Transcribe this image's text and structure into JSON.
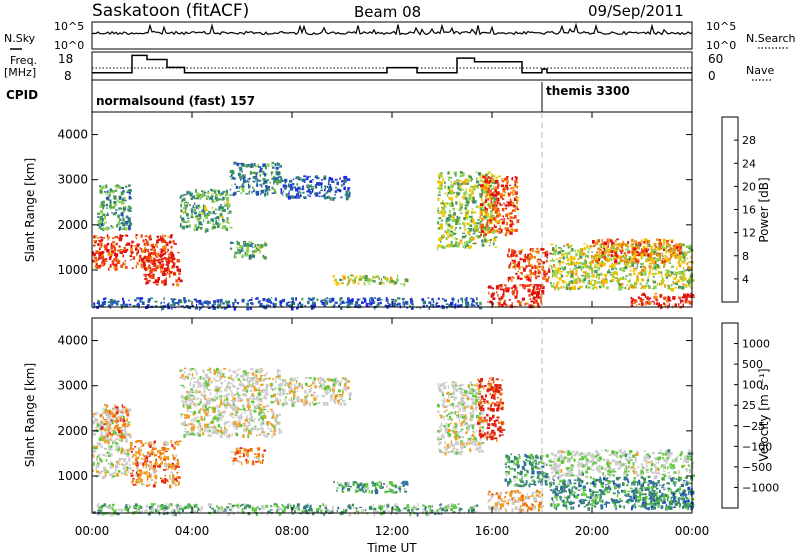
{
  "header": {
    "station": "Saskatoon (fitACF)",
    "beam": "Beam 08",
    "date": "09/Sep/2011"
  },
  "top_panels": {
    "nsky_label": "N.Sky",
    "nsky_ticks": [
      "10^5",
      "10^0"
    ],
    "nsearch_label": "N.Search",
    "nsearch_ticks": [
      "10^5",
      "10^0"
    ],
    "freq_label_1": "Freq.",
    "freq_label_2": "[MHz]",
    "freq_ticks": [
      "18",
      "8"
    ],
    "nave_label": "Nave",
    "nave_ticks": [
      "60",
      "0"
    ],
    "cpid_label": "CPID",
    "cpid_segments": [
      {
        "label": "normalsound (fast) 157",
        "start_hour": 0
      },
      {
        "label": "themis 3300",
        "start_hour": 18
      }
    ],
    "freq_steps": [
      {
        "t": 0,
        "v": 10.6
      },
      {
        "t": 1.6,
        "v": 16.8
      },
      {
        "t": 2.2,
        "v": 15.3
      },
      {
        "t": 3.0,
        "v": 12.5
      },
      {
        "t": 3.7,
        "v": 10.6
      },
      {
        "t": 11.8,
        "v": 12.4
      },
      {
        "t": 13.0,
        "v": 10.6
      },
      {
        "t": 14.6,
        "v": 15.8
      },
      {
        "t": 15.3,
        "v": 14.5
      },
      {
        "t": 17.2,
        "v": 10.6
      },
      {
        "t": 18.0,
        "v": 11.9
      },
      {
        "t": 18.2,
        "v": 10.6
      },
      {
        "t": 24,
        "v": 10.6
      }
    ]
  },
  "chart_data": [
    {
      "type": "heatmap",
      "title": "",
      "parameter": "Power",
      "xlabel": "",
      "ylabel": "Slant Range [km]",
      "x_ticks": [
        "00:00",
        "04:00",
        "08:00",
        "12:00",
        "16:00",
        "20:00",
        "00:00"
      ],
      "xlim_hours": [
        0,
        24
      ],
      "ylim": [
        180,
        4500
      ],
      "y_ticks": [
        1000,
        2000,
        3000,
        4000
      ],
      "colorbar": {
        "label": "Power [dB]",
        "ticks": [
          "4",
          "8",
          "12",
          "16",
          "20",
          "24",
          "28"
        ],
        "colors": [
          "#1c27e6",
          "#2150b8",
          "#2f7a86",
          "#4b9a54",
          "#8ad04a",
          "#f2c400",
          "#f09010",
          "#f04a10",
          "#e01010"
        ]
      },
      "echo_regions": [
        {
          "t0": 0.0,
          "t1": 3.3,
          "r0": 1050,
          "r1": 1800,
          "level": 0.88
        },
        {
          "t0": 0.2,
          "t1": 1.5,
          "r0": 1900,
          "r1": 2900,
          "level": 0.35
        },
        {
          "t0": 2.0,
          "t1": 3.5,
          "r0": 700,
          "r1": 1400,
          "level": 0.9
        },
        {
          "t0": 3.5,
          "t1": 5.5,
          "r0": 1900,
          "r1": 2800,
          "level": 0.4
        },
        {
          "t0": 5.5,
          "t1": 7.5,
          "r0": 2700,
          "r1": 3400,
          "level": 0.3
        },
        {
          "t0": 5.5,
          "t1": 6.9,
          "r0": 1300,
          "r1": 1650,
          "level": 0.42
        },
        {
          "t0": 7.5,
          "t1": 10.3,
          "r0": 2600,
          "r1": 3100,
          "level": 0.2
        },
        {
          "t0": 9.6,
          "t1": 12.6,
          "r0": 700,
          "r1": 900,
          "level": 0.55
        },
        {
          "t0": 0.0,
          "t1": 15.5,
          "r0": 180,
          "r1": 400,
          "level": 0.18
        },
        {
          "t0": 13.8,
          "t1": 16.1,
          "r0": 1500,
          "r1": 3200,
          "level": 0.5
        },
        {
          "t0": 15.5,
          "t1": 17.0,
          "r0": 1800,
          "r1": 3100,
          "level": 0.82
        },
        {
          "t0": 16.6,
          "t1": 18.3,
          "r0": 800,
          "r1": 1500,
          "level": 0.85
        },
        {
          "t0": 15.8,
          "t1": 18.0,
          "r0": 200,
          "r1": 700,
          "level": 0.92
        },
        {
          "t0": 18.3,
          "t1": 24.0,
          "r0": 600,
          "r1": 1600,
          "level": 0.55
        },
        {
          "t0": 20.0,
          "t1": 23.5,
          "r0": 1200,
          "r1": 1700,
          "level": 0.78
        },
        {
          "t0": 21.5,
          "t1": 24.0,
          "r0": 200,
          "r1": 500,
          "level": 0.92
        }
      ]
    },
    {
      "type": "heatmap",
      "title": "",
      "parameter": "Velocity",
      "xlabel": "Time UT",
      "ylabel": "Slant Range [km]",
      "x_ticks": [
        "00:00",
        "04:00",
        "08:00",
        "12:00",
        "16:00",
        "20:00",
        "00:00"
      ],
      "xlim_hours": [
        0,
        24
      ],
      "ylim": [
        180,
        4500
      ],
      "y_ticks": [
        1000,
        2000,
        3000,
        4000
      ],
      "colorbar": {
        "label": "Velocity [m s⁻¹]",
        "ticks": [
          "1000",
          "500",
          "100",
          "25",
          "−25",
          "−100",
          "−500",
          "−1000"
        ],
        "colors": [
          "#1c3cc8",
          "#2e6e9e",
          "#3a8a6a",
          "#5cc83a",
          "#cccccc",
          "#cccccc",
          "#f0a020",
          "#f07010",
          "#e02010"
        ]
      },
      "echo_regions": [
        {
          "t0": 0.0,
          "t1": 1.5,
          "r0": 1000,
          "r1": 2500,
          "level": 0.45
        },
        {
          "t0": 0.3,
          "t1": 1.4,
          "r0": 1900,
          "r1": 2600,
          "level": 0.25
        },
        {
          "t0": 1.5,
          "t1": 3.5,
          "r0": 800,
          "r1": 1800,
          "level": 0.22
        },
        {
          "t0": 3.5,
          "t1": 7.5,
          "r0": 1900,
          "r1": 3400,
          "level": 0.45
        },
        {
          "t0": 5.5,
          "t1": 6.9,
          "r0": 1300,
          "r1": 1650,
          "level": 0.2
        },
        {
          "t0": 7.5,
          "t1": 10.3,
          "r0": 2600,
          "r1": 3200,
          "level": 0.45
        },
        {
          "t0": 9.6,
          "t1": 12.6,
          "r0": 650,
          "r1": 900,
          "level": 0.7
        },
        {
          "t0": 0.0,
          "t1": 15.5,
          "r0": 180,
          "r1": 400,
          "level": 0.62
        },
        {
          "t0": 13.8,
          "t1": 15.6,
          "r0": 1500,
          "r1": 3100,
          "level": 0.45
        },
        {
          "t0": 15.4,
          "t1": 16.4,
          "r0": 1800,
          "r1": 3200,
          "level": 0.08
        },
        {
          "t0": 16.5,
          "t1": 18.3,
          "r0": 800,
          "r1": 1500,
          "level": 0.7
        },
        {
          "t0": 15.8,
          "t1": 18.0,
          "r0": 250,
          "r1": 700,
          "level": 0.3
        },
        {
          "t0": 18.3,
          "t1": 24.0,
          "r0": 1000,
          "r1": 1600,
          "level": 0.5
        },
        {
          "t0": 18.3,
          "t1": 24.0,
          "r0": 300,
          "r1": 1000,
          "level": 0.72
        },
        {
          "t0": 21.5,
          "t1": 24.0,
          "r0": 300,
          "r1": 700,
          "level": 0.75
        }
      ]
    }
  ]
}
